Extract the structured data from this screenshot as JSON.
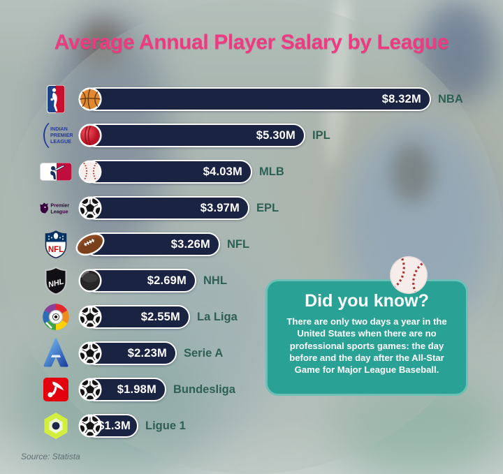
{
  "title": "Average Annual Player Salary by League",
  "chart_data": {
    "type": "bar",
    "orientation": "horizontal",
    "title": "Average Annual Player Salary by League",
    "unit": "USD millions per year",
    "xlim": [
      0,
      8.32
    ],
    "grid": false,
    "categories": [
      "NBA",
      "IPL",
      "MLB",
      "EPL",
      "NFL",
      "NHL",
      "La Liga",
      "Serie A",
      "Bundesliga",
      "Ligue 1"
    ],
    "values": [
      8.32,
      5.3,
      4.03,
      3.97,
      3.26,
      2.69,
      2.55,
      2.23,
      1.98,
      1.3
    ],
    "value_labels": [
      "$8.32M",
      "$5.30M",
      "$4.03M",
      "$3.97M",
      "$3.26M",
      "$2.69M",
      "$2.55M",
      "$2.23M",
      "$1.98M",
      "$1.3M"
    ],
    "logo_icons": [
      "nba-logo",
      "ipl-logo",
      "mlb-logo",
      "premier-league-logo",
      "nfl-logo",
      "nhl-logo",
      "laliga-logo",
      "serie-a-logo",
      "bundesliga-logo",
      "ligue1-logo"
    ],
    "ball_icons": [
      "basketball-icon",
      "cricket-ball-icon",
      "baseball-icon",
      "soccer-ball-icon",
      "american-football-icon",
      "hockey-puck-icon",
      "soccer-ball-icon",
      "soccer-ball-icon",
      "soccer-ball-icon",
      "soccer-ball-icon"
    ]
  },
  "did_you_know": {
    "title": "Did you know?",
    "body": "There are only two days a year in the United States when there are no professional sports games: the day before and the day after the All-Star Game for Major League Baseball.",
    "decoration_icon": "baseball-icon"
  },
  "source": "Source: Statista",
  "colors": {
    "title_pink": "#ee3a80",
    "bar_navy": "#1b2342",
    "bar_border": "#ffffff",
    "value_text": "#ffffff",
    "label_teal": "#2d5f53",
    "card_teal": "#29a295",
    "card_border": "#6cc0b5",
    "source_gray": "#5f6e72"
  }
}
